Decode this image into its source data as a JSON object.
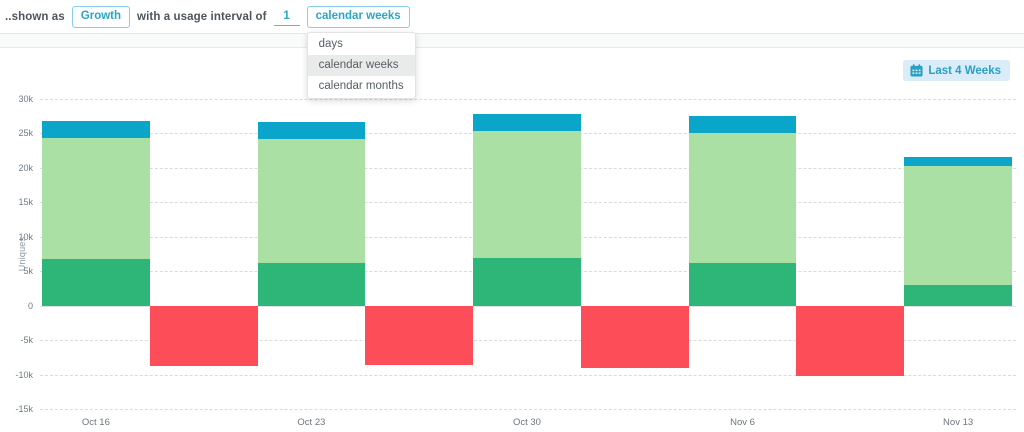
{
  "header": {
    "shown_as_label": "..shown as",
    "metric_value": "Growth",
    "interval_label": "with a usage interval of",
    "interval_value": "1",
    "unit_value": "calendar weeks"
  },
  "dropdown": {
    "options": [
      "days",
      "calendar weeks",
      "calendar months"
    ],
    "selected": "calendar weeks"
  },
  "chart": {
    "range_button_label": "Last 4 Weeks"
  },
  "chart_data": {
    "type": "bar",
    "stacked": true,
    "title": "",
    "xlabel": "",
    "ylabel": "Uniques",
    "ylim": [
      -15000,
      30000
    ],
    "ytick_step": 5000,
    "grid": "horizontal-dashed",
    "legend": "none",
    "categories": [
      "Oct 16",
      "Oct 23",
      "Oct 30",
      "Nov 6",
      "Nov 13"
    ],
    "series": [
      {
        "name": "dark-green-segment",
        "color": "#2eb678",
        "values": [
          6800,
          6200,
          6900,
          6200,
          3000
        ]
      },
      {
        "name": "light-green-segment",
        "color": "#abe0a5",
        "values": [
          17600,
          18000,
          18500,
          18800,
          17300
        ]
      },
      {
        "name": "blue-segment",
        "color": "#0aa5c8",
        "values": [
          2400,
          2400,
          2400,
          2500,
          1300
        ]
      },
      {
        "name": "red-negative-segment",
        "color": "#fc4d59",
        "position": "offset-right-of-category",
        "values": [
          -8800,
          -8600,
          -9000,
          -10200,
          null
        ]
      }
    ]
  }
}
